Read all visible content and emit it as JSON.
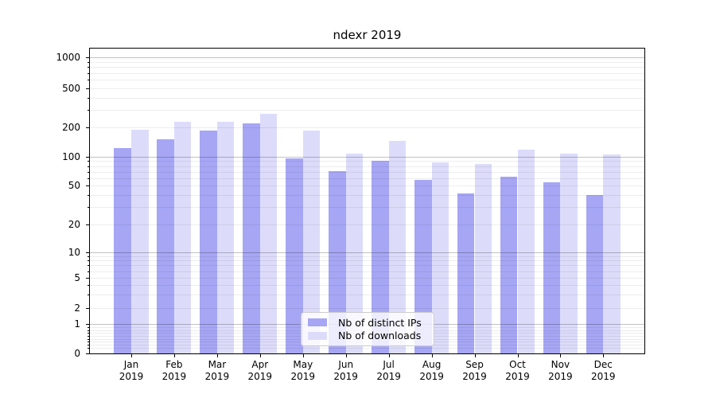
{
  "chart_data": {
    "type": "bar",
    "title": "ndexr 2019",
    "categories": [
      "Jan",
      "Feb",
      "Mar",
      "Apr",
      "May",
      "Jun",
      "Jul",
      "Aug",
      "Sep",
      "Oct",
      "Nov",
      "Dec"
    ],
    "category_year": "2019",
    "series": [
      {
        "name": "Nb of distinct IPs",
        "color": "#a6a6f5",
        "values": [
          122,
          150,
          185,
          220,
          96,
          71,
          91,
          57,
          42,
          62,
          54,
          40
        ]
      },
      {
        "name": "Nb of downloads",
        "color": "#dcdcfa",
        "values": [
          190,
          228,
          227,
          272,
          185,
          108,
          146,
          87,
          84,
          119,
          108,
          105
        ]
      }
    ],
    "yscale": "symlog",
    "y_ticks": [
      0,
      1,
      2,
      5,
      10,
      20,
      50,
      100,
      200,
      500,
      1000
    ],
    "ylim": [
      0,
      1300
    ],
    "xlabel": "",
    "ylabel": "",
    "grid": true,
    "legend_position": "lower center"
  }
}
